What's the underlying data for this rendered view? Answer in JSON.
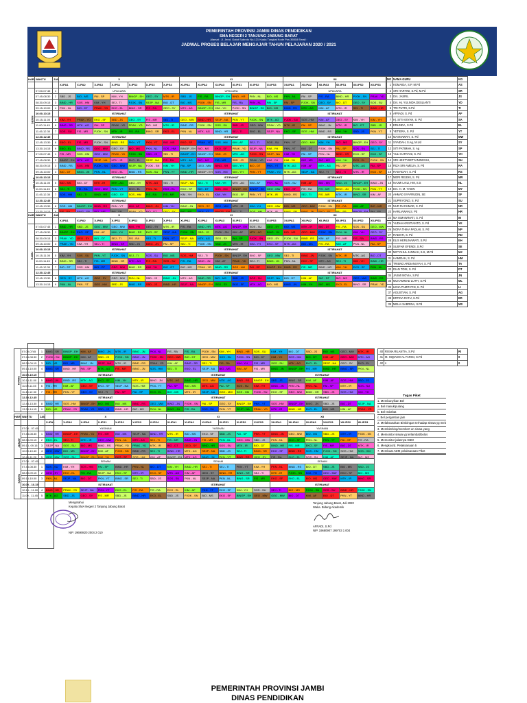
{
  "header": {
    "line1": "PEMERINTAH PROVINSI JAMBI DINAS PENDIDIKAN",
    "line2": "SMA NEGERI 2 TANJUNG JABUNG BARAT",
    "line3": "Alamat : Jl. Jend. Gatot Subroto No.121 Kuala Tungkal Kode Pos 36518 Email :",
    "line4": "JADWAL PROSES BELAJAR MENGAJAR TAHUN PELAJARAN 2020 / 2021"
  },
  "labels": {
    "hari": "HARI",
    "waktu": "WAKTU",
    "jam": "JAM KE",
    "grade_x": "X",
    "grade_xi": "XI",
    "grade_xii": "XII",
    "upacara": "UPACARA",
    "istirahat": "ISTIRAHAT",
    "yasinan": "YASINAN",
    "senam": "SENAM",
    "no": "NO",
    "nama_guru": "NAMA GURU",
    "kg": "KG"
  },
  "days": [
    "SENIN",
    "SELASA",
    "RABU",
    "KAMIS",
    "JUMAT",
    "SABTU"
  ],
  "classes": [
    "X-IPA1",
    "X-IPA2",
    "X-IPA3",
    "X-IPS1",
    "X-IPS2",
    "X-IPS3",
    "X-IPS4",
    "XI-IPA1",
    "XI-IPA2",
    "XI-IPA3",
    "XI-IPS1",
    "XI-IPS2",
    "XI-IPS3",
    "XII-IPA1",
    "XII-IPA2",
    "XII-IPA3",
    "XII-IPS1",
    "XII-IPS2",
    "XII-IPS3"
  ],
  "times": {
    "senin": [
      "07.00-07.45",
      "07.45-08.30",
      "08.30-09.15",
      "09.15-10.00",
      "10.00-10.15",
      "10.15-11.00",
      "11.00-11.45",
      "11.45-12.30",
      "12.30-12.45",
      "12.45-13.30",
      "13.30-14.15"
    ],
    "selasa": [
      "07.00-07.45",
      "07.45-08.30",
      "08.30-09.15",
      "09.15-10.00",
      "10.00-10.15",
      "10.15-11.00",
      "11.00-11.45",
      "11.45-12.30",
      "12.30-12.45",
      "12.45-13.30",
      "13.30-14.15"
    ],
    "rabu": [
      "07.00-07.45",
      "07.45-08.30",
      "08.30-09.15",
      "09.15-10.00",
      "10.00-10.15",
      "10.15-11.00",
      "11.00-11.45",
      "11.45-12.30",
      "12.30-12.45",
      "12.45-13.30",
      "13.30-14.15"
    ],
    "kamis": [
      "07.00-0745",
      "07.45-08.30",
      "08.30-09.15",
      "09.15-10.00",
      "10.00-10.15",
      "10.15-11.00",
      "11.00-11.45",
      "11.45-12.30",
      "12.30-12.45",
      "12.45-13.30",
      "13.30-14.15"
    ],
    "jumat": [
      "07.00 - 07.45",
      "07.45-08.30",
      "08.30-09.15",
      "09.15- 09.15",
      "10.00-10.40",
      "10.40-11.20"
    ],
    "sabtu": [
      "07.00 - 07.45",
      "07.45-08.30",
      "08.30-09.15",
      "09.15-10.00",
      "10.00 - 10.15",
      "10.15 - 11.00",
      "11.00 - 11.45"
    ]
  },
  "jam": {
    "senin": [
      "1",
      "2",
      "3",
      "4",
      "",
      "5",
      "6",
      "7",
      "",
      "8",
      "9"
    ],
    "jumat": [
      "",
      "1",
      "2",
      "3",
      "4",
      "5"
    ],
    "sabtu": [
      "",
      "1",
      "2",
      "3",
      "",
      "4",
      "5"
    ]
  },
  "pool": [
    "MTK - AG",
    "FIS - MR",
    "KIM - YH",
    "BIO - MS",
    "BIND - HR",
    "BING - SR",
    "SEJ - TI",
    "GEO - SY",
    "EKO - EL",
    "SOS - HM",
    "PKN - YT",
    "PAI - SP",
    "PJOK - SN",
    "SBD - JS",
    "PRAK - YD",
    "BINGP - EH",
    "SEJP - NA",
    "MTK - IR",
    "FIS - RA",
    "KIM - AF",
    "BIO - DT",
    "GEO - MW",
    "EKO - SF",
    "SOS - SU",
    "BIND - RS",
    "PKN - NL",
    "BING - JN"
  ],
  "palette": [
    "#ff2020",
    "#ff8c00",
    "#ffff00",
    "#00c000",
    "#00b0f0",
    "#0050ff",
    "#c000ff",
    "#ff66cc",
    "#99ff33",
    "#00ffcc",
    "#ffcc66",
    "#c0c0c0",
    "#9966ff",
    "#66ccff",
    "#ff0066",
    "#33cc99",
    "#996633",
    "#ffb3d9",
    "#808080",
    "#ccff66"
  ],
  "teachers": [
    [
      "1",
      "KOMAIDA, S.P, M.Pd",
      "AS"
    ],
    [
      "2",
      "SRI HARTINI, S.Pd, M.Pd",
      "SR"
    ],
    [
      "3",
      "Drs. JASRIL",
      "JS"
    ],
    [
      "4",
      "Drs. Hj. YULINDA DESLIANTI",
      "YD"
    ],
    [
      "5",
      "TRI PUTRI, S.Pd",
      "TI"
    ],
    [
      "6",
      "AFRADI, S. Pd",
      "AF"
    ],
    [
      "7",
      "Hj. SITI AISYAH, S. Pd",
      "SA"
    ],
    [
      "8",
      "ERLINDA, S.Pd",
      "EL"
    ],
    [
      "9",
      "YETIERA, S. Pd",
      "YT"
    ],
    [
      "10",
      "MASNAWATI, S. Pd",
      "MW"
    ],
    [
      "11",
      "SYAIDAH, S.Ag, M.Ud",
      "SY"
    ],
    [
      "12",
      "SITI FATIMAH, S. Ag",
      "SP"
    ],
    [
      "13",
      "YULI HARYANI, S. Pd",
      "YH"
    ],
    [
      "14",
      "SRI HESTYSETYANINGSIH,",
      "SH"
    ],
    [
      "15",
      "RIZA SRI AMELIA, S. Pd",
      "RA"
    ],
    [
      "16",
      "RASYIDAH, S. Pd",
      "RS"
    ],
    [
      "17",
      "MERI REJEKI, S. Pd",
      "MR"
    ],
    [
      "18",
      "NAJMI LAILI, HM, S.S",
      "NL"
    ],
    [
      "19",
      "Drs. H. M. YASIN",
      "MY"
    ],
    [
      "20",
      "AHMAD SYAFRUDIN, SE",
      "SF"
    ],
    [
      "21",
      "SUPRIYONO, S. Pd",
      "SU"
    ],
    [
      "22",
      "NUR RACHMAD, S. Pd",
      "NR"
    ],
    [
      "23",
      "HARLIAWAN,S. Pd",
      "HR"
    ],
    [
      "24",
      "MA ISMAWINATI, S. Pd",
      "IN"
    ],
    [
      "25",
      "YUDHA KRISTIANTO, S. Pd",
      "YK"
    ],
    [
      "26",
      "NORA THIKA PADLHI, S. Pd",
      "NP"
    ],
    [
      "27",
      "RADIATI, S. Pd",
      "RD"
    ],
    [
      "28",
      "ELIS HERLINAWATI, S.Pd",
      "EH"
    ],
    [
      "29",
      "SUSFAR EFENDI, S.Pd",
      "SE"
    ],
    [
      "30",
      "MIFTAHUL JANNAH, S.S, M.Pd",
      "MJ"
    ],
    [
      "31",
      "HAMIDAH, S. Pd",
      "HM"
    ],
    [
      "32",
      "TRISNO ARDIANSYAH, S. Pd",
      "TA"
    ],
    [
      "33",
      "DIAN TONI, S. Pd",
      "DT"
    ],
    [
      "34",
      "JASMI NOVIA, S.Pd",
      "JN"
    ],
    [
      "35",
      "MUHAMMAD LUTFI, S.Pd",
      "ML"
    ],
    [
      "36",
      "LENA PAMITATIN, S. Pd",
      "LI"
    ],
    [
      "37",
      "AGUSTIAN, S. Pd",
      "AG"
    ],
    [
      "38",
      "ERTINA RATU, S.Pd",
      "ER"
    ],
    [
      "39",
      "MELIA SABRINA, S.Pd",
      "MS"
    ],
    [
      "40",
      "RISNA RILANTIA, S.Pd",
      "RI"
    ],
    [
      "41",
      "M. INQIADO AL FARISI, S.Pd",
      "0"
    ],
    [
      "42",
      "s",
      "0"
    ]
  ],
  "piket": {
    "title": "Tugas Piket",
    "items": [
      "1. Membunyikan Bel",
      "a. Bel masuk/pulang",
      "b. Bel Istirahat",
      "c. Bel pergantian jam",
      "2. Melaksanakan Bimbingan terhadap Siswa yg melanggar peraturan",
      "3. Membimbing/membert un siswa yang",
      "4. Memonitor siswa yg terlambat/bolos",
      "5. Memonitor jalannya KBM",
      "6. Mengkoord. Pelaksanaan 5",
      "7. Membuat ADM pelaksanaan Piket"
    ]
  },
  "signature": {
    "left_title": "Mengetahui",
    "left_role": "Kepala SMA Negeri 2 Tanjung Jabung Barat",
    "left_nip": "NIP. 19690820 2004 2 010",
    "right_place": "Tanjung Jabung Barat, Juli 2020",
    "right_role": "Waka. Bidang Akademik",
    "right_name": "AFRADI, S.Pd",
    "right_nip": "NIP. 19680907 199703 1 004"
  },
  "bottom": {
    "line1": "PEMERINTAH PROVINSI JAMBI",
    "line2": "DINAS PENDIDIKAN"
  }
}
